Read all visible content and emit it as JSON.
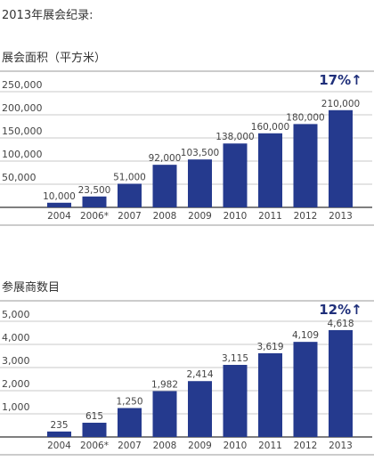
{
  "page_header": "2013年展会纪录:",
  "chart_data": [
    {
      "type": "bar",
      "title": "展会面积（平方米）",
      "categories": [
        "2004",
        "2006*",
        "2007",
        "2008",
        "2009",
        "2010",
        "2011",
        "2012",
        "2013"
      ],
      "values": [
        10000,
        23500,
        51000,
        92000,
        103500,
        138000,
        160000,
        180000,
        210000
      ],
      "value_labels": [
        "10,000",
        "23,500",
        "51,000",
        "92,000",
        "103,500",
        "138,000",
        "160,000",
        "180,000",
        "210,000"
      ],
      "y_ticks": [
        50000,
        100000,
        150000,
        200000,
        250000
      ],
      "y_tick_labels": [
        "50,000",
        "100,000",
        "150,000",
        "200,000",
        "250,000"
      ],
      "ylim": [
        0,
        250000
      ],
      "growth": "17%↑",
      "grid": true,
      "bar_color": "#253A8E"
    },
    {
      "type": "bar",
      "title": "参展商数目",
      "categories": [
        "2004",
        "2006*",
        "2007",
        "2008",
        "2009",
        "2010",
        "2011",
        "2012",
        "2013"
      ],
      "values": [
        235,
        615,
        1250,
        1982,
        2414,
        3115,
        3619,
        4109,
        4618
      ],
      "value_labels": [
        "235",
        "615",
        "1,250",
        "1,982",
        "2,414",
        "3,115",
        "3,619",
        "4,109",
        "4,618"
      ],
      "y_ticks": [
        1000,
        2000,
        3000,
        4000,
        5000
      ],
      "y_tick_labels": [
        "1,000",
        "2,000",
        "3,000",
        "4,000",
        "5,000"
      ],
      "ylim": [
        0,
        5000
      ],
      "growth": "12%↑",
      "grid": true,
      "bar_color": "#253A8E"
    }
  ]
}
